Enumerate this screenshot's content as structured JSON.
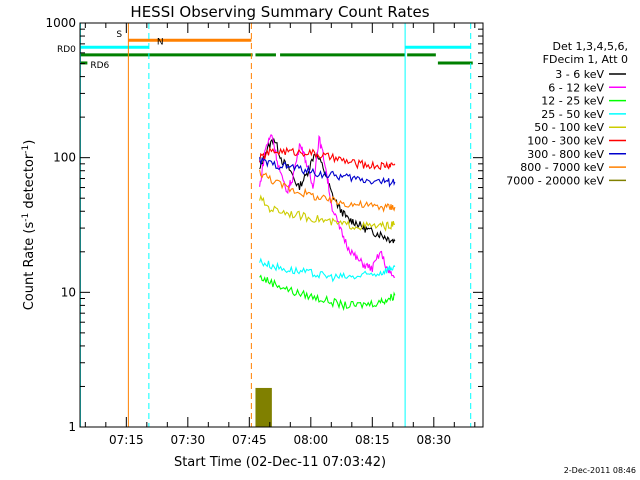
{
  "chart_data": {
    "type": "line",
    "title": "HESSI Observing Summary Count Rates",
    "xlabel": "Start Time (02-Dec-11 07:03:42)",
    "ylabel_main": "Count Rate (s",
    "ylabel_sup1": "-1",
    "ylabel_mid": " detector",
    "ylabel_sup2": "-1",
    "ylabel_end": ")",
    "yscale": "log",
    "ylim": [
      1,
      1000
    ],
    "xlim_min": [
      3.7,
      102
    ],
    "y_ticks": [
      {
        "value": 1,
        "label": "1"
      },
      {
        "value": 10,
        "label": "10"
      },
      {
        "value": 100,
        "label": "100"
      },
      {
        "value": 1000,
        "label": "1000"
      }
    ],
    "x_ticks": [
      {
        "value": 15,
        "label": "07:15"
      },
      {
        "value": 30,
        "label": "07:30"
      },
      {
        "value": 45,
        "label": "07:45"
      },
      {
        "value": 60,
        "label": "08:00"
      },
      {
        "value": 75,
        "label": "08:15"
      },
      {
        "value": 90,
        "label": "08:30"
      }
    ],
    "legend_header": [
      "Det 1,3,4,5,6,",
      "FDecim 1, Att 0"
    ],
    "series": [
      {
        "name": "3 - 6 keV",
        "color": "#000000",
        "points": [
          [
            47.5,
            80
          ],
          [
            49,
            110
          ],
          [
            51,
            140
          ],
          [
            53,
            95
          ],
          [
            55,
            80
          ],
          [
            57,
            60
          ],
          [
            59,
            75
          ],
          [
            61,
            110
          ],
          [
            63,
            85
          ],
          [
            65,
            55
          ],
          [
            67,
            42
          ],
          [
            69,
            35
          ],
          [
            71,
            33
          ],
          [
            73,
            30
          ],
          [
            75,
            28
          ],
          [
            77,
            27
          ],
          [
            79,
            25
          ],
          [
            80.5,
            24
          ]
        ]
      },
      {
        "name": "6 - 12 keV",
        "color": "#ff00ff",
        "points": [
          [
            47.5,
            60
          ],
          [
            49,
            120
          ],
          [
            50.5,
            150
          ],
          [
            52,
            90
          ],
          [
            54,
            55
          ],
          [
            55.5,
            70
          ],
          [
            57.5,
            130
          ],
          [
            59,
            90
          ],
          [
            60.5,
            60
          ],
          [
            62,
            140
          ],
          [
            63.5,
            90
          ],
          [
            65,
            45
          ],
          [
            67,
            30
          ],
          [
            69,
            22
          ],
          [
            71,
            18
          ],
          [
            73,
            16
          ],
          [
            75,
            15
          ],
          [
            77,
            20
          ],
          [
            79,
            14
          ],
          [
            80.5,
            13
          ]
        ]
      },
      {
        "name": "12 - 25 keV",
        "color": "#00ff00",
        "points": [
          [
            47.5,
            13
          ],
          [
            50,
            12
          ],
          [
            53,
            11
          ],
          [
            56,
            10
          ],
          [
            59,
            9.5
          ],
          [
            62,
            9
          ],
          [
            65,
            8.5
          ],
          [
            68,
            8
          ],
          [
            71,
            8
          ],
          [
            74,
            8.2
          ],
          [
            77,
            8.5
          ],
          [
            79,
            9
          ],
          [
            80.5,
            9.5
          ]
        ]
      },
      {
        "name": "25 - 50 keV",
        "color": "#00ffff",
        "points": [
          [
            47.5,
            17
          ],
          [
            50,
            16
          ],
          [
            53,
            15
          ],
          [
            56,
            14.5
          ],
          [
            59,
            14
          ],
          [
            62,
            13.5
          ],
          [
            65,
            13
          ],
          [
            68,
            13
          ],
          [
            71,
            13
          ],
          [
            74,
            13.5
          ],
          [
            77,
            14
          ],
          [
            79,
            15
          ],
          [
            80.5,
            15.5
          ]
        ]
      },
      {
        "name": "50 - 100 keV",
        "color": "#cccc00",
        "points": [
          [
            47.5,
            50
          ],
          [
            50,
            42
          ],
          [
            53,
            40
          ],
          [
            56,
            38
          ],
          [
            59,
            36
          ],
          [
            62,
            35
          ],
          [
            65,
            33
          ],
          [
            68,
            32
          ],
          [
            71,
            31
          ],
          [
            74,
            31
          ],
          [
            77,
            31
          ],
          [
            79,
            31
          ],
          [
            80.5,
            32
          ]
        ]
      },
      {
        "name": "100 - 300 keV",
        "color": "#ff0000",
        "points": [
          [
            47.5,
            98
          ],
          [
            50,
            110
          ],
          [
            53,
            112
          ],
          [
            56,
            110
          ],
          [
            59,
            110
          ],
          [
            62,
            105
          ],
          [
            65,
            100
          ],
          [
            68,
            95
          ],
          [
            71,
            90
          ],
          [
            74,
            88
          ],
          [
            77,
            87
          ],
          [
            79,
            88
          ],
          [
            80.5,
            90
          ]
        ]
      },
      {
        "name": "300 - 800 keV",
        "color": "#0000cc",
        "points": [
          [
            47.5,
            95
          ],
          [
            50,
            90
          ],
          [
            53,
            87
          ],
          [
            56,
            85
          ],
          [
            59,
            80
          ],
          [
            62,
            76
          ],
          [
            65,
            74
          ],
          [
            68,
            72
          ],
          [
            71,
            70
          ],
          [
            74,
            68
          ],
          [
            77,
            67
          ],
          [
            79,
            66
          ],
          [
            80.5,
            66
          ]
        ]
      },
      {
        "name": "800 - 7000 keV",
        "color": "#ff8000",
        "points": [
          [
            47.5,
            78
          ],
          [
            50,
            70
          ],
          [
            53,
            62
          ],
          [
            56,
            57
          ],
          [
            59,
            54
          ],
          [
            62,
            50
          ],
          [
            65,
            48
          ],
          [
            68,
            46
          ],
          [
            71,
            45
          ],
          [
            74,
            44
          ],
          [
            77,
            43
          ],
          [
            79,
            43
          ],
          [
            80.5,
            43
          ]
        ]
      },
      {
        "name": "7000 - 20000 keV",
        "color": "#808000",
        "points": []
      }
    ],
    "vertical_lines": [
      {
        "x": 3.8,
        "color": "#00ffff",
        "style": "solid"
      },
      {
        "x": 15.5,
        "color": "#ff8000",
        "style": "solid"
      },
      {
        "x": 20.5,
        "color": "#00ffff",
        "style": "dashed"
      },
      {
        "x": 45.5,
        "color": "#ff8000",
        "style": "dashed"
      },
      {
        "x": 83,
        "color": "#00ffff",
        "style": "solid"
      },
      {
        "x": 99,
        "color": "#00ffff",
        "style": "dashed"
      }
    ],
    "flag_bars": [
      {
        "label": "S",
        "color": "#ff8000",
        "y": 745,
        "segments": [
          [
            15.5,
            45.5
          ]
        ]
      },
      {
        "label": "N",
        "color": "#00ffff",
        "y": 660,
        "segments": [
          [
            3.8,
            20.5
          ],
          [
            83,
            99
          ]
        ]
      },
      {
        "label": "RD0",
        "color": "#008000",
        "y": 580,
        "segments": [
          [
            3.8,
            45.8
          ],
          [
            46.5,
            51.5
          ],
          [
            52.5,
            83
          ],
          [
            83.5,
            90.5
          ]
        ]
      },
      {
        "label": "RD6",
        "color": "#008000",
        "y": 505,
        "segments": [
          [
            3.8,
            5.5
          ],
          [
            91,
            99.5
          ]
        ]
      }
    ],
    "olive_block": {
      "x_from": 46.5,
      "x_to": 50.5,
      "y_top": 1.95
    }
  },
  "footer_date": "2-Dec-2011 08:46",
  "colors": {
    "background": "#ffffff",
    "axes": "#000000"
  }
}
